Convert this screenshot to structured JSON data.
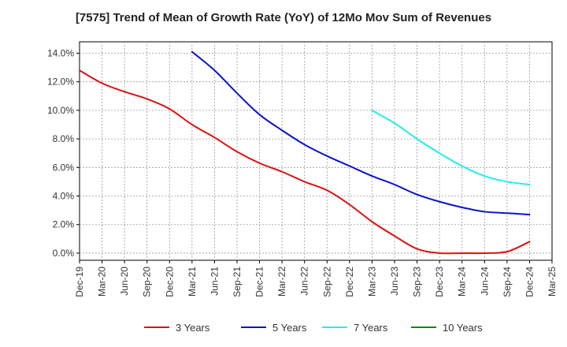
{
  "chart_data": {
    "type": "line",
    "title": "[7575]  Trend of Mean of Growth Rate (YoY) of 12Mo Mov Sum of Revenues",
    "xlabel": "",
    "ylabel": "",
    "ylim": [
      -0.5,
      14.8
    ],
    "yticks": [
      0,
      2,
      4,
      6,
      8,
      10,
      12,
      14
    ],
    "ytick_labels": [
      "0.0%",
      "2.0%",
      "4.0%",
      "6.0%",
      "8.0%",
      "10.0%",
      "12.0%",
      "14.0%"
    ],
    "x_labels": [
      "Dec-19",
      "Mar-20",
      "Jun-20",
      "Sep-20",
      "Dec-20",
      "Mar-21",
      "Jun-21",
      "Sep-21",
      "Dec-21",
      "Mar-22",
      "Jun-22",
      "Sep-22",
      "Dec-22",
      "Mar-23",
      "Jun-23",
      "Sep-23",
      "Dec-23",
      "Mar-24",
      "Jun-24",
      "Sep-24",
      "Dec-24",
      "Mar-25"
    ],
    "grid": true,
    "series": [
      {
        "name": "3 Years",
        "color": "#dd1111",
        "start_index": 0,
        "values": [
          12.8,
          11.9,
          11.3,
          10.8,
          10.1,
          9.0,
          8.1,
          7.1,
          6.3,
          5.7,
          5.0,
          4.4,
          3.4,
          2.2,
          1.2,
          0.3,
          0.0,
          0.0,
          0.0,
          0.1,
          0.8
        ]
      },
      {
        "name": "5 Years",
        "color": "#0a14cc",
        "start_index": 5,
        "values": [
          14.1,
          12.8,
          11.2,
          9.7,
          8.6,
          7.6,
          6.8,
          6.1,
          5.4,
          4.8,
          4.1,
          3.6,
          3.2,
          2.9,
          2.8,
          2.7
        ]
      },
      {
        "name": "7 Years",
        "color": "#22eeee",
        "start_index": 13,
        "values": [
          10.0,
          9.1,
          8.0,
          7.0,
          6.1,
          5.4,
          5.0,
          4.8
        ]
      },
      {
        "name": "10 Years",
        "color": "#118811",
        "start_index": 0,
        "values": []
      }
    ]
  }
}
